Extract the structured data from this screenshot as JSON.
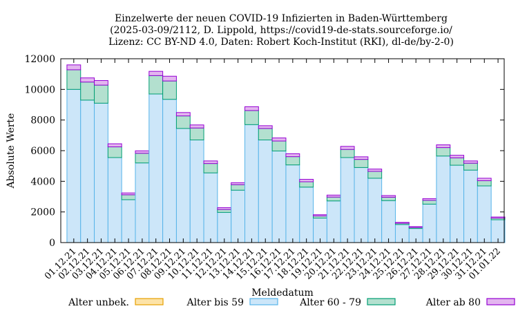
{
  "chart_data": {
    "type": "bar",
    "stacked": true,
    "title_lines": [
      "Einzelwerte der neuen COVID-19 Infizierten in Baden-Württemberg",
      "(2025-03-09/2112, D. Lippold, https://covid19-de-stats.sourceforge.io/",
      "Lizenz: CC BY-ND 4.0, Daten: Robert Koch-Institut (RKI), dl-de/by-2-0)"
    ],
    "xlabel": "Meldedatum",
    "ylabel": "Absolute Werte",
    "ylim": [
      0,
      12000
    ],
    "yticks": [
      0,
      2000,
      4000,
      6000,
      8000,
      10000,
      12000
    ],
    "grid": false,
    "legend_position": "bottom",
    "categories": [
      "01.12.21",
      "02.12.21",
      "03.12.21",
      "04.12.21",
      "05.12.21",
      "06.12.21",
      "07.12.21",
      "08.12.21",
      "09.12.21",
      "10.12.21",
      "11.12.21",
      "12.12.21",
      "13.12.21",
      "14.12.21",
      "15.12.21",
      "16.12.21",
      "17.12.21",
      "18.12.21",
      "19.12.21",
      "20.12.21",
      "21.12.21",
      "22.12.21",
      "23.12.21",
      "24.12.21",
      "25.12.21",
      "26.12.21",
      "27.12.21",
      "28.12.21",
      "29.12.21",
      "30.12.21",
      "31.12.21",
      "01.01.22"
    ],
    "series": [
      {
        "name": "Alter unbek.",
        "fill": "#fde3a7",
        "stroke": "#e69f00",
        "values": [
          0,
          0,
          0,
          0,
          0,
          0,
          0,
          0,
          0,
          0,
          0,
          0,
          0,
          0,
          0,
          0,
          0,
          0,
          0,
          0,
          0,
          0,
          0,
          0,
          0,
          0,
          0,
          0,
          0,
          0,
          0,
          0
        ]
      },
      {
        "name": "Alter bis 59",
        "fill": "#cce6f9",
        "stroke": "#56b4e9",
        "values": [
          10000,
          9300,
          9100,
          5550,
          2800,
          5200,
          9700,
          9350,
          7450,
          6700,
          4550,
          1970,
          3420,
          7700,
          6700,
          5980,
          5070,
          3620,
          1600,
          2720,
          5550,
          4900,
          4200,
          2740,
          1180,
          920,
          2510,
          5650,
          5050,
          4730,
          3700,
          1490
        ]
      },
      {
        "name": "Alter 60 - 79",
        "fill": "#b3e0cf",
        "stroke": "#009e73",
        "values": [
          1280,
          1180,
          1180,
          700,
          320,
          630,
          1200,
          1200,
          820,
          780,
          610,
          190,
          360,
          920,
          750,
          650,
          540,
          350,
          140,
          250,
          530,
          530,
          450,
          220,
          80,
          70,
          250,
          550,
          480,
          450,
          340,
          110
        ]
      },
      {
        "name": "Alter ab 80",
        "fill": "#e3b5ef",
        "stroke": "#9400d3",
        "values": [
          320,
          270,
          300,
          200,
          120,
          160,
          280,
          310,
          220,
          200,
          170,
          120,
          130,
          250,
          180,
          200,
          190,
          160,
          80,
          130,
          200,
          170,
          150,
          110,
          60,
          50,
          110,
          180,
          170,
          150,
          160,
          70
        ]
      }
    ]
  }
}
